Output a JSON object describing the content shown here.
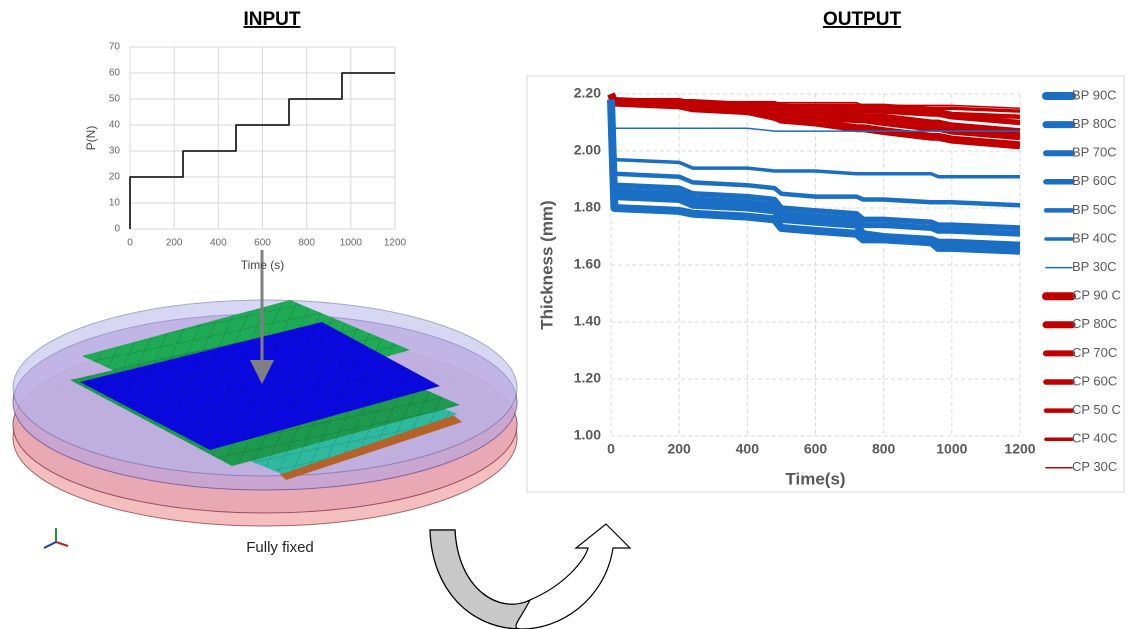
{
  "headings": {
    "input": "INPUT",
    "output": "OUTPUT"
  },
  "caption": "Fully fixed",
  "chart_data": [
    {
      "type": "line",
      "xlabel": "Time (s)",
      "ylabel": "P(N)",
      "x": [
        0,
        0,
        240,
        240,
        480,
        480,
        720,
        720,
        960,
        960,
        1200
      ],
      "values": [
        0,
        20,
        20,
        30,
        30,
        40,
        40,
        50,
        50,
        60,
        60
      ],
      "color": "#222222",
      "xlim": [
        0,
        1200
      ],
      "xticks": [
        0,
        200,
        400,
        600,
        800,
        1000,
        1200
      ],
      "ylim": [
        0,
        70
      ],
      "yticks": [
        0,
        10,
        20,
        30,
        40,
        50,
        60,
        70
      ],
      "grid": true
    },
    {
      "type": "line",
      "xlabel": "Time(s)",
      "ylabel": "Thickness (mm)",
      "legend": "right",
      "grid": true,
      "x": [
        0,
        10,
        200,
        240,
        400,
        480,
        500,
        600,
        720,
        740,
        800,
        940,
        960,
        1000,
        1200
      ],
      "xlim": [
        0,
        1200
      ],
      "xticks": [
        0,
        200,
        400,
        600,
        800,
        1000,
        1200
      ],
      "ylim": [
        1.0,
        2.2
      ],
      "yticks": [
        {
          "value": 1.0,
          "label": "1.00"
        },
        {
          "value": 1.2,
          "label": "1.20"
        },
        {
          "value": 1.4,
          "label": "1.40"
        },
        {
          "value": 1.6,
          "label": "1.60"
        },
        {
          "value": 1.8,
          "label": "1.80"
        },
        {
          "value": 2.0,
          "label": "2.00"
        },
        {
          "value": 2.2,
          "label": "2.20"
        }
      ],
      "series": [
        {
          "name": "BP 90C",
          "color": "#1a6fc4",
          "values": [
            2.18,
            1.8,
            1.79,
            1.78,
            1.77,
            1.76,
            1.73,
            1.72,
            1.71,
            1.69,
            1.69,
            1.68,
            1.66,
            1.66,
            1.65
          ]
        },
        {
          "name": "BP 80C",
          "color": "#1a6fc4",
          "values": [
            2.18,
            1.84,
            1.83,
            1.81,
            1.8,
            1.79,
            1.76,
            1.75,
            1.74,
            1.71,
            1.7,
            1.69,
            1.68,
            1.68,
            1.67
          ]
        },
        {
          "name": "BP 70C",
          "color": "#1a6fc4",
          "values": [
            2.18,
            1.86,
            1.85,
            1.83,
            1.82,
            1.81,
            1.78,
            1.77,
            1.76,
            1.74,
            1.74,
            1.73,
            1.72,
            1.72,
            1.71
          ]
        },
        {
          "name": "BP 60C",
          "color": "#1a6fc4",
          "values": [
            2.18,
            1.88,
            1.87,
            1.85,
            1.84,
            1.83,
            1.8,
            1.79,
            1.78,
            1.76,
            1.76,
            1.75,
            1.74,
            1.74,
            1.73
          ]
        },
        {
          "name": "BP 50C",
          "color": "#1a6fc4",
          "values": [
            2.18,
            1.92,
            1.91,
            1.89,
            1.88,
            1.87,
            1.85,
            1.84,
            1.84,
            1.83,
            1.83,
            1.82,
            1.82,
            1.82,
            1.81
          ]
        },
        {
          "name": "BP 40C",
          "color": "#1a6fc4",
          "values": [
            2.18,
            1.97,
            1.96,
            1.94,
            1.94,
            1.93,
            1.93,
            1.93,
            1.92,
            1.92,
            1.92,
            1.92,
            1.91,
            1.91,
            1.91
          ]
        },
        {
          "name": "BP 30C",
          "color": "#1a6fc4",
          "values": [
            2.18,
            2.08,
            2.08,
            2.08,
            2.08,
            2.07,
            2.07,
            2.07,
            2.07,
            2.07,
            2.07,
            2.07,
            2.07,
            2.07,
            2.07
          ]
        },
        {
          "name": "CP 90 C",
          "color": "#c00000",
          "values": [
            2.2,
            2.17,
            2.16,
            2.15,
            2.14,
            2.12,
            2.11,
            2.1,
            2.08,
            2.08,
            2.07,
            2.05,
            2.05,
            2.04,
            2.02
          ]
        },
        {
          "name": "CP 80C",
          "color": "#c00000",
          "values": [
            2.2,
            2.17,
            2.16,
            2.15,
            2.15,
            2.14,
            2.13,
            2.12,
            2.11,
            2.11,
            2.1,
            2.08,
            2.08,
            2.07,
            2.05
          ]
        },
        {
          "name": "CP 70C",
          "color": "#c00000",
          "values": [
            2.2,
            2.17,
            2.16,
            2.16,
            2.15,
            2.15,
            2.14,
            2.14,
            2.13,
            2.12,
            2.12,
            2.1,
            2.1,
            2.09,
            2.07
          ]
        },
        {
          "name": "CP 60C",
          "color": "#c00000",
          "values": [
            2.19,
            2.18,
            2.17,
            2.17,
            2.16,
            2.16,
            2.15,
            2.15,
            2.14,
            2.14,
            2.14,
            2.13,
            2.13,
            2.12,
            2.1
          ]
        },
        {
          "name": "CP 50 C",
          "color": "#c00000",
          "values": [
            2.19,
            2.18,
            2.17,
            2.17,
            2.16,
            2.16,
            2.16,
            2.15,
            2.15,
            2.15,
            2.15,
            2.14,
            2.14,
            2.13,
            2.12
          ]
        },
        {
          "name": "CP 40C",
          "color": "#c00000",
          "values": [
            2.19,
            2.18,
            2.18,
            2.17,
            2.17,
            2.17,
            2.16,
            2.16,
            2.16,
            2.16,
            2.16,
            2.15,
            2.15,
            2.15,
            2.14
          ]
        },
        {
          "name": "CP 30C",
          "color": "#c00000",
          "values": [
            2.19,
            2.18,
            2.18,
            2.18,
            2.17,
            2.17,
            2.17,
            2.17,
            2.17,
            2.16,
            2.16,
            2.16,
            2.16,
            2.16,
            2.15
          ]
        }
      ]
    }
  ]
}
